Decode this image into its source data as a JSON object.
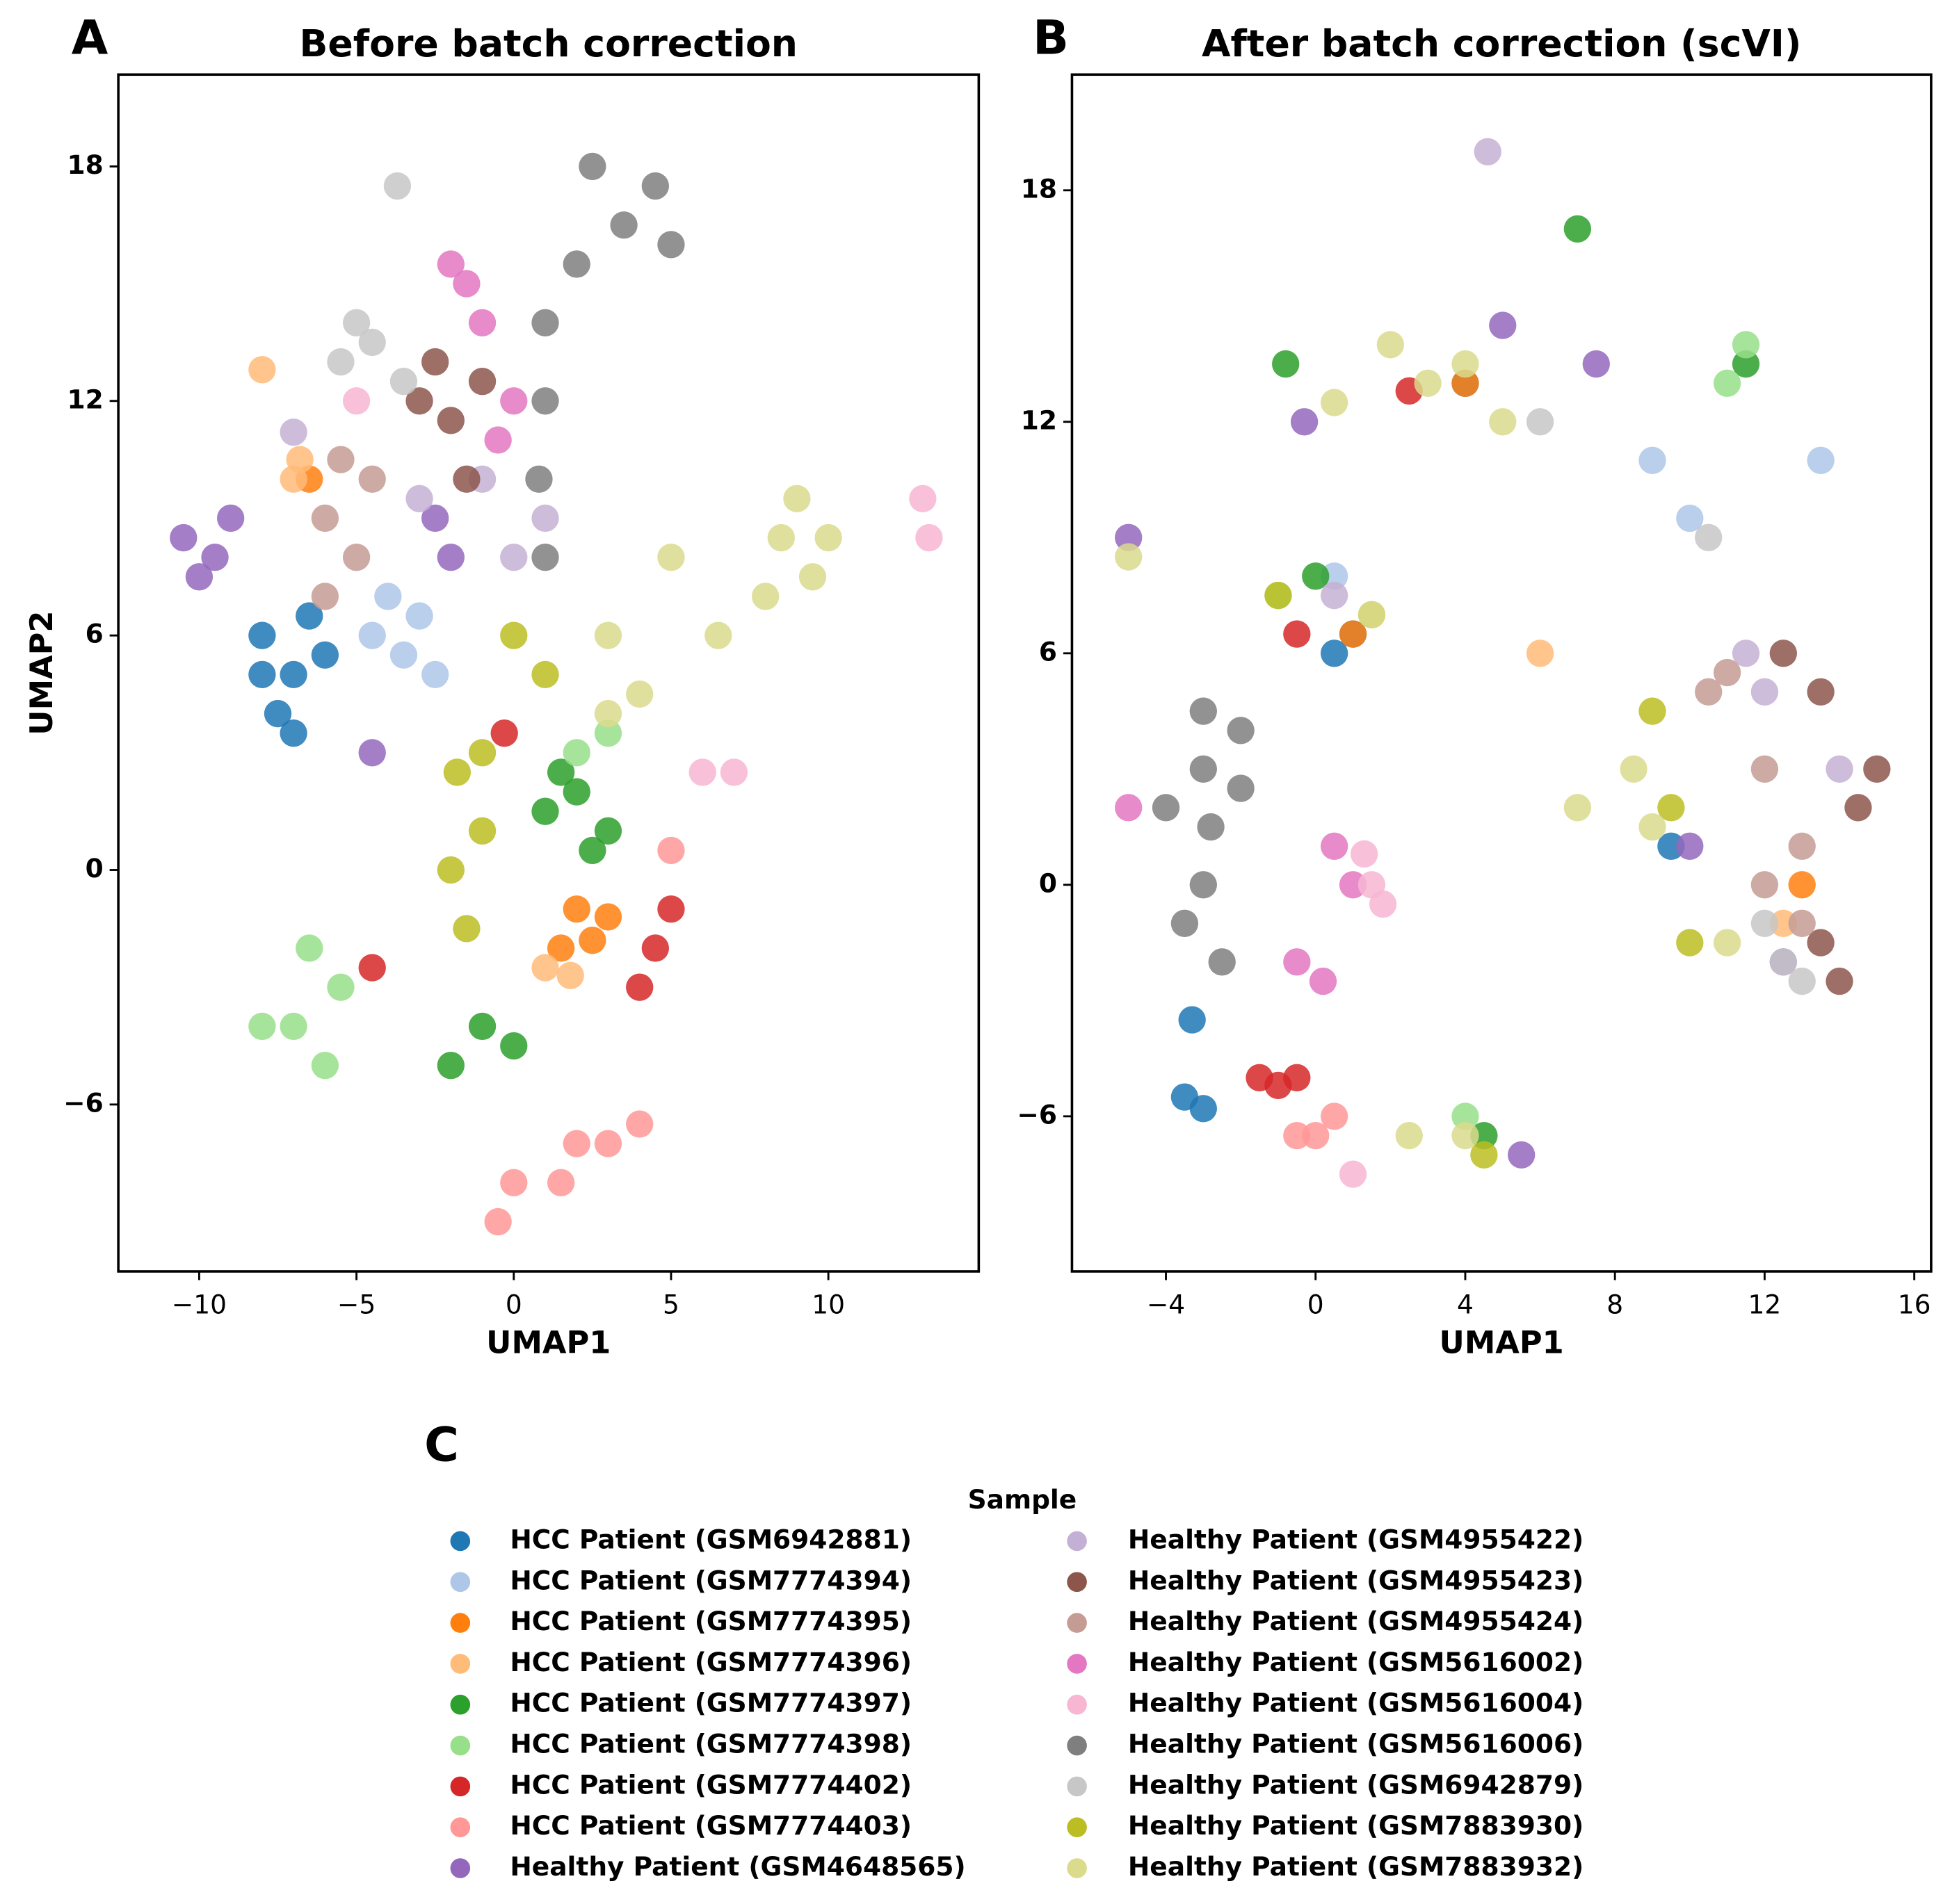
{
  "chart_data": [
    {
      "type": "scatter",
      "panel_label": "A",
      "title": "Before batch correction",
      "xlabel": "UMAP1",
      "ylabel": "UMAP2",
      "xlim": [
        -12.57,
        14.78
      ],
      "ylim": [
        -10.27,
        20.35
      ],
      "xticks": [
        {
          "value": -10,
          "label": "−10"
        },
        {
          "value": -5,
          "label": "−5"
        },
        0,
        5,
        10
      ],
      "yticks": [
        {
          "value": -6,
          "label": "−6"
        },
        0,
        6,
        12,
        18
      ],
      "series": [
        {
          "x": [
            -8,
            -7,
            -7.5,
            -6.5,
            -6,
            -7,
            -8
          ],
          "values": [
            6,
            5,
            4,
            6.5,
            5.5,
            3.5,
            5
          ]
        },
        {
          "x": [
            -4,
            -3,
            -4.5,
            -3.5,
            -2.5
          ],
          "values": [
            7,
            6.5,
            6,
            5.5,
            5
          ]
        },
        {
          "x": [
            2,
            3,
            2.5,
            1.5,
            -6.5
          ],
          "values": [
            -1,
            -1.2,
            -1.8,
            -2,
            10
          ]
        },
        {
          "x": [
            -7,
            -6.8,
            -8,
            1,
            1.8
          ],
          "values": [
            10,
            10.5,
            12.8,
            -2.5,
            -2.7
          ]
        },
        {
          "x": [
            1,
            2,
            3,
            2.5,
            -1,
            0,
            -2,
            1.5
          ],
          "values": [
            1.5,
            2,
            1,
            0.5,
            -4,
            -4.5,
            -5,
            2.5
          ]
        },
        {
          "x": [
            -6.5,
            -7,
            -8,
            -6,
            -5.5,
            2,
            3
          ],
          "values": [
            -2,
            -4,
            -4,
            -5,
            -3,
            3,
            3.5
          ]
        },
        {
          "x": [
            4.5,
            5,
            4,
            -0.3,
            -4.5
          ],
          "values": [
            -2,
            -1,
            -3,
            3.5,
            -2.5
          ]
        },
        {
          "x": [
            2,
            3,
            4,
            0,
            -0.5,
            1.5,
            5
          ],
          "values": [
            -7,
            -7,
            -6.5,
            -8,
            -9,
            -8,
            0.5
          ]
        },
        {
          "x": [
            -10.5,
            -9.5,
            -9,
            -10,
            -4.5,
            -2.5,
            -2
          ],
          "values": [
            8.5,
            8,
            9,
            7.5,
            3,
            9,
            8
          ]
        },
        {
          "x": [
            -3,
            -1,
            0,
            -7,
            1
          ],
          "values": [
            9.5,
            10,
            8,
            11.2,
            9
          ]
        },
        {
          "x": [
            -2.5,
            -2,
            -1.5,
            -3,
            -1
          ],
          "values": [
            13,
            11.5,
            10,
            12,
            12.5
          ]
        },
        {
          "x": [
            -5.5,
            -6,
            -5,
            -4.5,
            -6
          ],
          "values": [
            10.5,
            9,
            8,
            10,
            7
          ]
        },
        {
          "x": [
            -1.5,
            -1,
            -2,
            0,
            -0.5
          ],
          "values": [
            15,
            14,
            15.5,
            12,
            11
          ]
        },
        {
          "x": [
            13,
            13.2,
            6,
            -5,
            7
          ],
          "values": [
            9.5,
            8.5,
            2.5,
            12,
            2.5
          ]
        },
        {
          "x": [
            4.5,
            5,
            3.5,
            2,
            1,
            1,
            0.8,
            2.5,
            1
          ],
          "values": [
            17.5,
            16,
            16.5,
            15.5,
            14,
            12,
            10,
            18,
            8
          ]
        },
        {
          "x": [
            -5.5,
            -4.5,
            -5,
            -3.5,
            -3.7
          ],
          "values": [
            13,
            13.5,
            14,
            12.5,
            17.5
          ]
        },
        {
          "x": [
            -2,
            -1.5,
            -1,
            -1.8,
            0,
            1,
            -1
          ],
          "values": [
            0,
            -1.5,
            1,
            2.5,
            6,
            5,
            3
          ]
        },
        {
          "x": [
            8.5,
            9.5,
            10,
            8,
            9,
            3,
            4,
            6.5,
            5,
            3
          ],
          "values": [
            8.5,
            7.5,
            8.5,
            7,
            9.5,
            6,
            4.5,
            6,
            8,
            4
          ]
        }
      ]
    },
    {
      "type": "scatter",
      "panel_label": "B",
      "title": "After batch correction (scVI)",
      "xlabel": "UMAP1",
      "xlim": [
        -6.51,
        16.45
      ],
      "ylim": [
        -10.02,
        21.0
      ],
      "xticks": [
        {
          "value": -4,
          "label": "−4"
        },
        0,
        4,
        8,
        12,
        16
      ],
      "yticks": [
        {
          "value": -6,
          "label": "−6"
        },
        0,
        6,
        12,
        18
      ],
      "series": [
        {
          "x": [
            -3.5,
            -3,
            -3.3,
            4,
            0.5,
            9.5,
            1
          ],
          "values": [
            -5.5,
            -5.8,
            -3.5,
            13,
            6,
            1,
            6.5
          ]
        },
        {
          "x": [
            10,
            9,
            13.5,
            0.5
          ],
          "values": [
            9.5,
            11,
            11,
            8
          ]
        },
        {
          "x": [
            1,
            13,
            4
          ],
          "values": [
            6.5,
            0,
            13
          ]
        },
        {
          "x": [
            6,
            12.5
          ],
          "values": [
            6,
            -1
          ]
        },
        {
          "x": [
            -0.8,
            4.5,
            7,
            11.5,
            0
          ],
          "values": [
            13.5,
            -6.5,
            17,
            13.5,
            8
          ]
        },
        {
          "x": [
            11.5,
            11,
            4,
            -1
          ],
          "values": [
            14,
            13,
            -6,
            7.5
          ]
        },
        {
          "x": [
            -1.5,
            -1,
            -0.5,
            2.5,
            -0.5
          ],
          "values": [
            -5,
            -5.2,
            -5,
            12.8,
            6.5
          ]
        },
        {
          "x": [
            -0.5,
            0.5,
            0
          ],
          "values": [
            -6.5,
            -6,
            -6.5
          ]
        },
        {
          "x": [
            5,
            7.5,
            -0.3,
            -5,
            5.5,
            10,
            12.5
          ],
          "values": [
            14.5,
            13.5,
            12,
            9,
            -7,
            1,
            -2
          ]
        },
        {
          "x": [
            12,
            14,
            11.5,
            4.6,
            0.5
          ],
          "values": [
            5,
            3,
            6,
            19,
            7.5
          ]
        },
        {
          "x": [
            13.5,
            14.5,
            13.5,
            14,
            12.5,
            15
          ],
          "values": [
            5,
            2,
            -1.5,
            -2.5,
            6,
            3
          ]
        },
        {
          "x": [
            11,
            12,
            13,
            12,
            13,
            10.5
          ],
          "values": [
            5.5,
            3,
            1,
            0,
            -1,
            5
          ]
        },
        {
          "x": [
            0.5,
            1,
            -0.5,
            -5,
            0.2
          ],
          "values": [
            1,
            0,
            -2,
            2,
            -2.5
          ]
        },
        {
          "x": [
            1.5,
            1.8,
            1,
            1.3
          ],
          "values": [
            0,
            -0.5,
            -7.5,
            0.8
          ]
        },
        {
          "x": [
            -3,
            -4,
            -2,
            -3,
            -2.5,
            -3,
            -2,
            -2.8,
            -3.5
          ],
          "values": [
            3,
            2,
            2.5,
            0,
            -2,
            4.5,
            4,
            1.5,
            -1
          ]
        },
        {
          "x": [
            12.5,
            13,
            6,
            12,
            10.5
          ],
          "values": [
            -2,
            -2.5,
            12,
            -1,
            9
          ]
        },
        {
          "x": [
            9,
            -1,
            4.5,
            9.5,
            1.5,
            10
          ],
          "values": [
            4.5,
            7.5,
            -7,
            2,
            7,
            -1.5
          ]
        },
        {
          "x": [
            2,
            3,
            5,
            4,
            0.5,
            9,
            7,
            11,
            8.5,
            -5,
            4,
            2.5,
            1.5
          ],
          "values": [
            14,
            13,
            12,
            13.5,
            12.5,
            1.5,
            2,
            -1.5,
            3,
            8.5,
            -6.5,
            -6.5,
            7
          ]
        }
      ]
    }
  ],
  "legend": {
    "panel_label": "C",
    "title": "Sample",
    "entries": [
      {
        "name": "HCC Patient (GSM6942881)",
        "color": "#1f77b4"
      },
      {
        "name": "HCC Patient (GSM7774394)",
        "color": "#aec7e8"
      },
      {
        "name": "HCC Patient (GSM7774395)",
        "color": "#ff7f0e"
      },
      {
        "name": "HCC Patient (GSM7774396)",
        "color": "#ffbb78"
      },
      {
        "name": "HCC Patient (GSM7774397)",
        "color": "#2ca02c"
      },
      {
        "name": "HCC Patient (GSM7774398)",
        "color": "#98df8a"
      },
      {
        "name": "HCC Patient (GSM7774402)",
        "color": "#d62728"
      },
      {
        "name": "HCC Patient (GSM7774403)",
        "color": "#ff9896"
      },
      {
        "name": "Healthy Patient (GSM4648565)",
        "color": "#9467bd"
      },
      {
        "name": "Healthy Patient (GSM4955422)",
        "color": "#c5b0d5"
      },
      {
        "name": "Healthy Patient (GSM4955423)",
        "color": "#8c564b"
      },
      {
        "name": "Healthy Patient (GSM4955424)",
        "color": "#c49c94"
      },
      {
        "name": "Healthy Patient (GSM5616002)",
        "color": "#e377c2"
      },
      {
        "name": "Healthy Patient (GSM5616004)",
        "color": "#f7b6d2"
      },
      {
        "name": "Healthy Patient (GSM5616006)",
        "color": "#7f7f7f"
      },
      {
        "name": "Healthy Patient (GSM6942879)",
        "color": "#c7c7c7"
      },
      {
        "name": "Healthy Patient (GSM7883930)",
        "color": "#bcbd22"
      },
      {
        "name": "Healthy Patient (GSM7883932)",
        "color": "#dbdb8d"
      }
    ]
  }
}
